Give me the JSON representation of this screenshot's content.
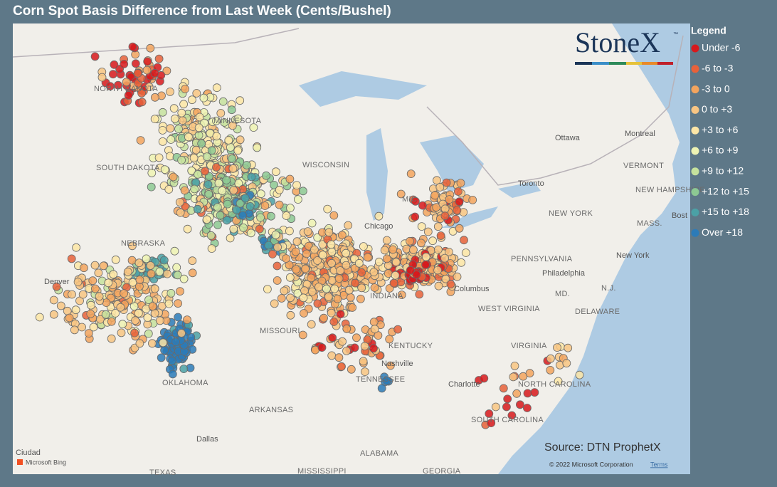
{
  "header": {
    "title": "Corn Spot Basis Difference from Last Week (Cents/Bushel)"
  },
  "logo": {
    "text": "StoneX",
    "mark": "™"
  },
  "legend": {
    "title": "Legend",
    "items": [
      {
        "label": "Under -6",
        "color": "#d7191c"
      },
      {
        "label": "-6 to -3",
        "color": "#e8613a"
      },
      {
        "label": "-3 to 0",
        "color": "#f3a45e"
      },
      {
        "label": "0 to +3",
        "color": "#f8c583"
      },
      {
        "label": "+3 to +6",
        "color": "#fde6a6"
      },
      {
        "label": "+6 to +9",
        "color": "#eef3b3"
      },
      {
        "label": "+9 to +12",
        "color": "#c6e29d"
      },
      {
        "label": "+12 to +15",
        "color": "#8dc993"
      },
      {
        "label": "+15 to +18",
        "color": "#4ba1a6"
      },
      {
        "label": "Over +18",
        "color": "#2c7bb8"
      }
    ]
  },
  "map": {
    "labels": [
      "NORTH DAKOTA",
      "MINNESOTA",
      "SOUTH DAKOTA",
      "WISCONSIN",
      "NEBRASKA",
      "Denver",
      "MISSOURI",
      "KENTUCKY",
      "Nashville",
      "TENNESSEE",
      "OKLAHOMA",
      "ARKANSAS",
      "Dallas",
      "ALABAMA",
      "MISSISSIPPI",
      "GEORGIA",
      "TEXAS",
      "Chicago",
      "MIC",
      "Toronto",
      "Ottawa",
      "Montreal",
      "VERMONT",
      "NEW HAMPSHIRE",
      "NEW YORK",
      "MASS.",
      "Bost",
      "New York",
      "PENNSYLVANIA",
      "Philadelphia",
      "MD.",
      "N.J.",
      "DELAWARE",
      "Columbus",
      "WEST VIRGINIA",
      "VIRGINIA",
      "NORTH CAROLINA",
      "Charlotte",
      "SOUTH CAROLINA",
      "INDIANA",
      "Ciudad"
    ],
    "source": "Source: DTN ProphetX",
    "copyright": "© 2022 Microsoft Corporation",
    "terms": "Terms",
    "provider": "Microsoft Bing"
  }
}
